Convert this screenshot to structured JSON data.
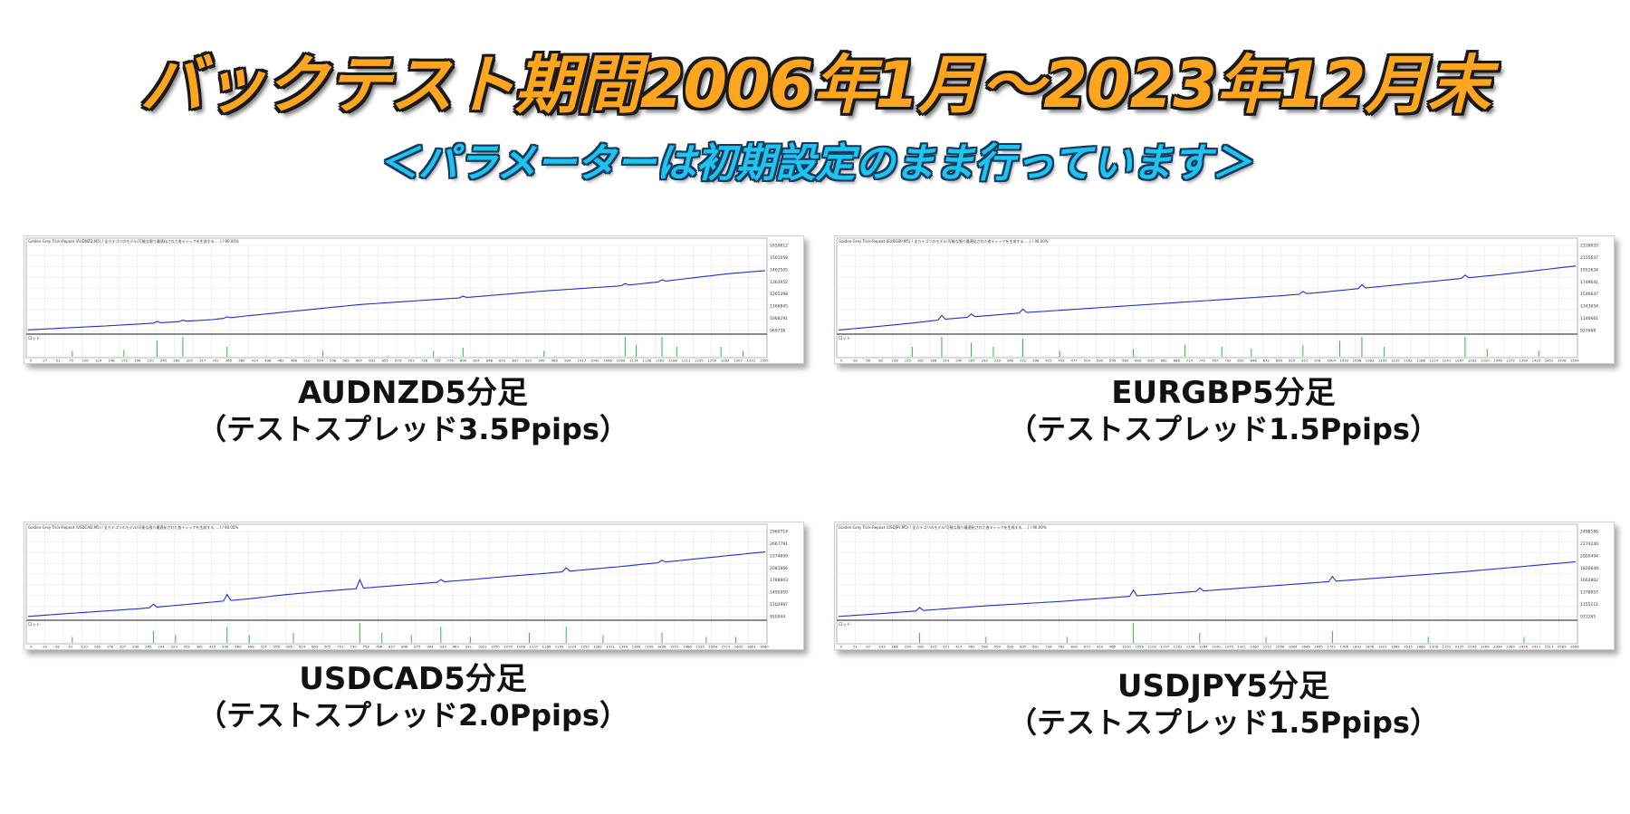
{
  "header": {
    "title": "バックテスト期間2006年1月～2023年12月末",
    "subtitle": "＜パラメーターは初期設定のまま行っています＞"
  },
  "colors": {
    "title": "#ffa51f",
    "subtitle": "#1ec3f0",
    "equity_line": "#1f2fc8",
    "volume_bar": "#2bbf3a"
  },
  "chart_data": [
    {
      "type": "line",
      "pair_label": "AUDNZD5分足",
      "spread_label": "（テストスプレッド3.5Ppips）",
      "header_text": "Golden-Grey Trick-Repeat (AUDNZD,M5) / 全カテゴリのモデル(可能な限り最適化された各ティックを生成する, ...) / 90.00%",
      "lower_label": "ロット",
      "y_ticks": [
        "1659612",
        "1561059",
        "1462505",
        "1363952",
        "1265398",
        "1166845",
        "1068291",
        "969738"
      ],
      "x_ticks": [
        "0",
        "27",
        "51",
        "75",
        "100",
        "124",
        "148",
        "172",
        "196",
        "220",
        "245",
        "269",
        "293",
        "317",
        "341",
        "365",
        "389",
        "414",
        "438",
        "462",
        "486",
        "510",
        "534",
        "558",
        "583",
        "607",
        "631",
        "655",
        "679",
        "703",
        "728",
        "752",
        "776",
        "800",
        "824",
        "848",
        "872",
        "897",
        "921",
        "945",
        "969",
        "993",
        "1017",
        "1042",
        "1066",
        "1090",
        "1114",
        "1138",
        "1162",
        "1186",
        "1211",
        "1235",
        "1259",
        "1283",
        "1307",
        "1331",
        "1355"
      ],
      "ylim": [
        969738,
        1659612
      ],
      "equity": [
        [
          0,
          975000
        ],
        [
          0.05,
          990000
        ],
        [
          0.1,
          1005000
        ],
        [
          0.15,
          1022000
        ],
        [
          0.2,
          1040000
        ],
        [
          0.25,
          1058000
        ],
        [
          0.3,
          1090000
        ],
        [
          0.35,
          1120000
        ],
        [
          0.4,
          1150000
        ],
        [
          0.45,
          1180000
        ],
        [
          0.5,
          1200000
        ],
        [
          0.55,
          1220000
        ],
        [
          0.6,
          1240000
        ],
        [
          0.65,
          1265000
        ],
        [
          0.7,
          1290000
        ],
        [
          0.75,
          1310000
        ],
        [
          0.8,
          1330000
        ],
        [
          0.85,
          1360000
        ],
        [
          0.9,
          1395000
        ],
        [
          0.95,
          1430000
        ],
        [
          1,
          1455000
        ]
      ],
      "spikes": [
        [
          0.175,
          12000
        ],
        [
          0.21,
          10000
        ],
        [
          0.27,
          10000
        ],
        [
          0.59,
          12000
        ],
        [
          0.81,
          15000
        ],
        [
          0.86,
          14000
        ]
      ],
      "volume": [
        [
          0.06,
          0.3
        ],
        [
          0.13,
          0.35
        ],
        [
          0.175,
          0.8
        ],
        [
          0.21,
          1.0
        ],
        [
          0.27,
          0.5
        ],
        [
          0.4,
          0.3
        ],
        [
          0.55,
          0.3
        ],
        [
          0.59,
          0.45
        ],
        [
          0.7,
          0.3
        ],
        [
          0.81,
          1.0
        ],
        [
          0.825,
          0.6
        ],
        [
          0.86,
          1.0
        ],
        [
          0.88,
          0.5
        ],
        [
          0.94,
          0.5
        ],
        [
          0.97,
          0.3
        ]
      ]
    },
    {
      "type": "line",
      "pair_label": "EURGBP5分足",
      "spread_label": "（テストスプレッド1.5Ppips）",
      "header_text": "Golden-Grey Trick-Repeat (EURGBP,M5) / 全カテゴリのモデル(可能な限り最適化された各ティックを生成する, ...) / 90.00%",
      "lower_label": "ロット",
      "y_ticks": [
        "2338620",
        "2155637",
        "1952634",
        "1749641",
        "1546647",
        "1343654",
        "1140661",
        "937668"
      ],
      "x_ticks": [
        "0",
        "30",
        "56",
        "82",
        "109",
        "135",
        "161",
        "188",
        "214",
        "240",
        "267",
        "293",
        "319",
        "346",
        "372",
        "398",
        "425",
        "451",
        "477",
        "504",
        "530",
        "556",
        "583",
        "609",
        "635",
        "662",
        "688",
        "714",
        "741",
        "767",
        "793",
        "820",
        "846",
        "872",
        "899",
        "925",
        "951",
        "978",
        "1004",
        "1030",
        "1056",
        "1083",
        "1109",
        "1135",
        "1162",
        "1188",
        "1214",
        "1241",
        "1267",
        "1293",
        "1320",
        "1346",
        "1372",
        "1399",
        "1425",
        "1451",
        "1478",
        "1504"
      ],
      "ylim": [
        937668,
        2338620
      ],
      "equity": [
        [
          0,
          945000
        ],
        [
          0.05,
          1000000
        ],
        [
          0.1,
          1060000
        ],
        [
          0.15,
          1130000
        ],
        [
          0.2,
          1180000
        ],
        [
          0.25,
          1230000
        ],
        [
          0.3,
          1270000
        ],
        [
          0.35,
          1310000
        ],
        [
          0.4,
          1350000
        ],
        [
          0.45,
          1390000
        ],
        [
          0.5,
          1430000
        ],
        [
          0.55,
          1470000
        ],
        [
          0.6,
          1510000
        ],
        [
          0.65,
          1560000
        ],
        [
          0.7,
          1620000
        ],
        [
          0.75,
          1680000
        ],
        [
          0.8,
          1740000
        ],
        [
          0.85,
          1800000
        ],
        [
          0.9,
          1860000
        ],
        [
          0.95,
          1930000
        ],
        [
          1,
          2000000
        ]
      ],
      "spikes": [
        [
          0.14,
          70000
        ],
        [
          0.18,
          50000
        ],
        [
          0.25,
          60000
        ],
        [
          0.63,
          40000
        ],
        [
          0.71,
          60000
        ],
        [
          0.85,
          50000
        ]
      ],
      "volume": [
        [
          0.1,
          0.5
        ],
        [
          0.14,
          1.0
        ],
        [
          0.18,
          0.7
        ],
        [
          0.21,
          0.5
        ],
        [
          0.25,
          0.9
        ],
        [
          0.3,
          0.3
        ],
        [
          0.4,
          0.4
        ],
        [
          0.47,
          0.6
        ],
        [
          0.52,
          0.5
        ],
        [
          0.56,
          0.4
        ],
        [
          0.63,
          0.6
        ],
        [
          0.68,
          0.8
        ],
        [
          0.71,
          1.0
        ],
        [
          0.74,
          0.5
        ],
        [
          0.85,
          1.0
        ],
        [
          0.88,
          0.4
        ],
        [
          0.95,
          0.3
        ]
      ]
    },
    {
      "type": "line",
      "pair_label": "USDCAD5分足",
      "spread_label": "（テストスプレッド2.0Ppips）",
      "header_text": "Golden-Grey Trick-Repeat (USDCAD,M5) / 全カテゴリのモデル(可能な限り最適化された各ティックを生成する, ...) / 90.00%",
      "lower_label": "ロット",
      "y_ticks": [
        "2960714",
        "2667791",
        "2374609",
        "2081856",
        "1788903",
        "1495950",
        "1202997",
        "910044"
      ],
      "x_ticks": [
        "0",
        "33",
        "62",
        "91",
        "120",
        "149",
        "178",
        "207",
        "236",
        "265",
        "294",
        "323",
        "352",
        "381",
        "410",
        "439",
        "469",
        "498",
        "527",
        "556",
        "585",
        "614",
        "643",
        "672",
        "701",
        "730",
        "759",
        "788",
        "817",
        "846",
        "875",
        "904",
        "933",
        "962",
        "991",
        "1021",
        "1050",
        "1079",
        "1108",
        "1137",
        "1166",
        "1195",
        "1224",
        "1253",
        "1282",
        "1311",
        "1340",
        "1369",
        "1399",
        "1428",
        "1457",
        "1486",
        "1515",
        "1544",
        "1573",
        "1602",
        "1631",
        "1660"
      ],
      "ylim": [
        910044,
        2960714
      ],
      "equity": [
        [
          0,
          915000
        ],
        [
          0.05,
          980000
        ],
        [
          0.1,
          1040000
        ],
        [
          0.15,
          1100000
        ],
        [
          0.2,
          1180000
        ],
        [
          0.25,
          1260000
        ],
        [
          0.3,
          1340000
        ],
        [
          0.35,
          1440000
        ],
        [
          0.4,
          1520000
        ],
        [
          0.45,
          1590000
        ],
        [
          0.5,
          1660000
        ],
        [
          0.55,
          1730000
        ],
        [
          0.6,
          1800000
        ],
        [
          0.65,
          1880000
        ],
        [
          0.7,
          1950000
        ],
        [
          0.75,
          2030000
        ],
        [
          0.8,
          2110000
        ],
        [
          0.85,
          2200000
        ],
        [
          0.9,
          2290000
        ],
        [
          0.95,
          2380000
        ],
        [
          1,
          2470000
        ]
      ],
      "spikes": [
        [
          0.17,
          80000
        ],
        [
          0.27,
          150000
        ],
        [
          0.45,
          210000
        ],
        [
          0.56,
          60000
        ],
        [
          0.73,
          90000
        ],
        [
          0.86,
          50000
        ]
      ],
      "volume": [
        [
          0.06,
          0.3
        ],
        [
          0.17,
          0.6
        ],
        [
          0.2,
          0.4
        ],
        [
          0.27,
          0.8
        ],
        [
          0.3,
          0.4
        ],
        [
          0.36,
          0.5
        ],
        [
          0.45,
          1.0
        ],
        [
          0.48,
          0.5
        ],
        [
          0.52,
          0.4
        ],
        [
          0.56,
          0.8
        ],
        [
          0.6,
          0.3
        ],
        [
          0.68,
          0.5
        ],
        [
          0.73,
          0.8
        ],
        [
          0.78,
          0.4
        ],
        [
          0.86,
          0.5
        ],
        [
          0.92,
          0.3
        ],
        [
          0.96,
          0.3
        ]
      ]
    },
    {
      "type": "line",
      "pair_label": "USDJPY5分足",
      "spread_label": "（テストスプレッド1.5Ppips）",
      "header_text": "Golden-Grey Trick-Repeat (USDJPY,M5) / 全カテゴリのモデル(可能な限り最適化された各ティックを生成する, ...) / 90.00%",
      "lower_label": "ロット",
      "y_ticks": [
        "2498186",
        "2274240",
        "2050494",
        "1826648",
        "1602802",
        "1378957",
        "1155111",
        "931265"
      ],
      "x_ticks": [
        "0",
        "51",
        "97",
        "143",
        "188",
        "234",
        "280",
        "325",
        "371",
        "417",
        "462",
        "508",
        "554",
        "599",
        "645",
        "691",
        "736",
        "782",
        "828",
        "873",
        "919",
        "965",
        "1010",
        "1056",
        "1102",
        "1147",
        "1193",
        "1239",
        "1284",
        "1330",
        "1375",
        "1421",
        "1467",
        "1512",
        "1558",
        "1604",
        "1649",
        "1695",
        "1741",
        "1786",
        "1832",
        "1878",
        "1923",
        "1969",
        "2015",
        "2060",
        "2106",
        "2152",
        "2197",
        "2243",
        "2289",
        "2334",
        "2380",
        "2426",
        "2471",
        "2517",
        "2563",
        "2608"
      ],
      "ylim": [
        931265,
        2498186
      ],
      "equity": [
        [
          0,
          935000
        ],
        [
          0.05,
          980000
        ],
        [
          0.1,
          1030000
        ],
        [
          0.15,
          1080000
        ],
        [
          0.2,
          1130000
        ],
        [
          0.25,
          1170000
        ],
        [
          0.3,
          1210000
        ],
        [
          0.35,
          1260000
        ],
        [
          0.4,
          1310000
        ],
        [
          0.45,
          1360000
        ],
        [
          0.5,
          1410000
        ],
        [
          0.55,
          1460000
        ],
        [
          0.6,
          1510000
        ],
        [
          0.65,
          1560000
        ],
        [
          0.7,
          1610000
        ],
        [
          0.75,
          1660000
        ],
        [
          0.8,
          1710000
        ],
        [
          0.85,
          1760000
        ],
        [
          0.9,
          1820000
        ],
        [
          0.95,
          1880000
        ],
        [
          1,
          1940000
        ]
      ],
      "spikes": [
        [
          0.11,
          60000
        ],
        [
          0.4,
          110000
        ],
        [
          0.49,
          60000
        ],
        [
          0.67,
          90000
        ]
      ],
      "volume": [
        [
          0.11,
          0.5
        ],
        [
          0.2,
          0.3
        ],
        [
          0.31,
          0.3
        ],
        [
          0.4,
          1.0
        ],
        [
          0.49,
          0.5
        ],
        [
          0.58,
          0.3
        ],
        [
          0.67,
          0.6
        ],
        [
          0.8,
          0.3
        ],
        [
          0.93,
          0.3
        ]
      ]
    }
  ]
}
